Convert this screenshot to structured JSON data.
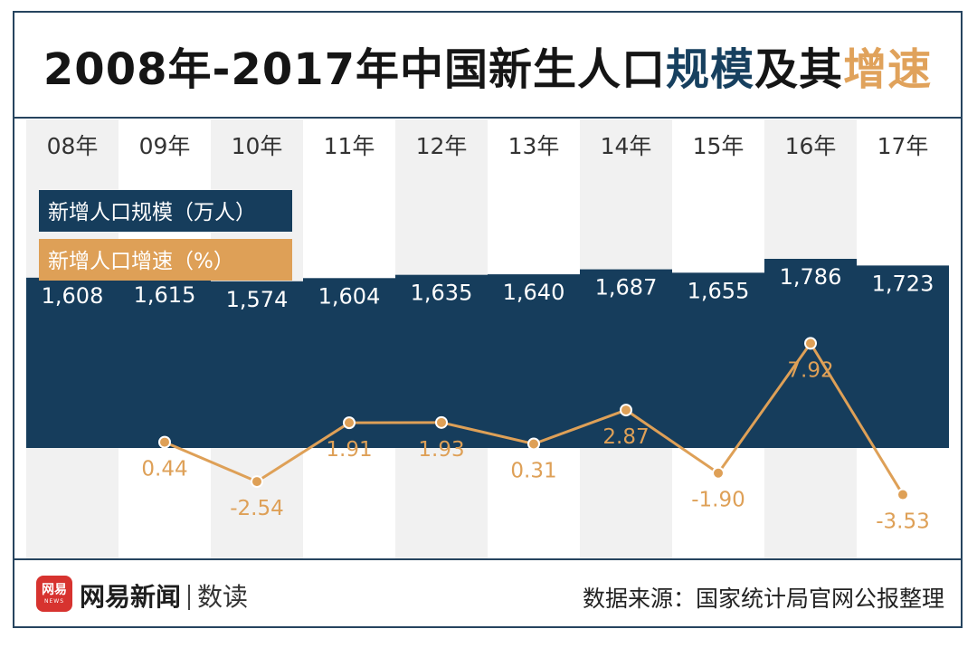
{
  "title": {
    "part1": "2008年-2017年中国新生人口",
    "part2": "规模",
    "part3": "及其",
    "part4": "增速"
  },
  "colors": {
    "bar": "#163d5c",
    "line": "#dea057",
    "stripe": "#f1f1f1",
    "title_blue": "#17405f",
    "title_orange": "#e0a25b"
  },
  "chart_data": {
    "type": "bar+line",
    "categories": [
      "08年",
      "09年",
      "10年",
      "11年",
      "12年",
      "13年",
      "14年",
      "15年",
      "16年",
      "17年"
    ],
    "series": [
      {
        "name": "新增人口规模（万人）",
        "type": "bar",
        "values": [
          1608,
          1615,
          1574,
          1604,
          1635,
          1640,
          1687,
          1655,
          1786,
          1723
        ],
        "labels": [
          "1,608",
          "1,615",
          "1,574",
          "1,604",
          "1,635",
          "1,640",
          "1,687",
          "1,655",
          "1,786",
          "1,723"
        ]
      },
      {
        "name": "新增人口增速（%）",
        "type": "line",
        "values": [
          null,
          0.44,
          -2.54,
          1.91,
          1.93,
          0.31,
          2.87,
          -1.9,
          7.92,
          -3.53
        ],
        "labels": [
          "",
          "0.44",
          "-2.54",
          "1.91",
          "1.93",
          "0.31",
          "2.87",
          "-1.90",
          "7.92",
          "-3.53"
        ]
      }
    ],
    "legend": [
      "新增人口规模（万人）",
      "新增人口增速（%）"
    ],
    "legend_position": "top-left"
  },
  "footer": {
    "logo_text": "网易",
    "logo_sub": "NEWS",
    "brand": "网易新闻",
    "brand_sub": "数读",
    "source": "数据来源：国家统计局官网公报整理"
  }
}
